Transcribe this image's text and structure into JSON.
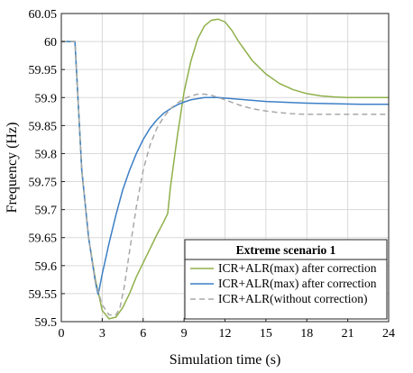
{
  "chart_data": {
    "type": "line",
    "title": "",
    "xlabel": "Simulation time (s)",
    "ylabel": "Frequency (Hz)",
    "xlim": [
      0,
      24
    ],
    "ylim": [
      59.5,
      60.05
    ],
    "xticks": [
      0,
      3,
      6,
      9,
      12,
      15,
      18,
      21,
      24
    ],
    "yticks": [
      59.5,
      59.55,
      59.6,
      59.65,
      59.7,
      59.75,
      59.8,
      59.85,
      59.9,
      59.95,
      60,
      60.05
    ],
    "xtick_labels": [
      "0",
      "3",
      "6",
      "9",
      "12",
      "15",
      "18",
      "21",
      "24"
    ],
    "ytick_labels": [
      "59.5",
      "59.55",
      "59.6",
      "59.65",
      "59.7",
      "59.75",
      "59.8",
      "59.85",
      "59.9",
      "59.95",
      "60",
      "60.05"
    ],
    "grid": true,
    "legend": {
      "title": "Extreme scenario 1",
      "placement": "bottom-right"
    },
    "series": [
      {
        "name": "ICR+ALR(max) after correction",
        "color": "#8fb04a",
        "dash": "solid",
        "x": [
          0,
          1,
          1.5,
          2,
          2.5,
          3,
          3.5,
          4,
          4.5,
          5,
          5.5,
          6,
          6.5,
          7,
          7.5,
          7.8,
          8,
          8.5,
          9,
          9.5,
          10,
          10.5,
          11,
          11.5,
          12,
          12.5,
          13,
          14,
          15,
          16,
          17,
          18,
          19,
          20,
          21,
          22,
          23,
          24
        ],
        "y": [
          60,
          60,
          59.77,
          59.65,
          59.575,
          59.52,
          59.505,
          59.508,
          59.525,
          59.55,
          59.58,
          59.605,
          59.63,
          59.655,
          59.678,
          59.693,
          59.74,
          59.83,
          59.91,
          59.965,
          60.005,
          60.028,
          60.038,
          60.04,
          60.035,
          60.02,
          60.0,
          59.966,
          59.942,
          59.925,
          59.914,
          59.907,
          59.903,
          59.901,
          59.9,
          59.9,
          59.9,
          59.9
        ]
      },
      {
        "name": "ICR+ALR(max) after correction",
        "color": "#3c7fc6",
        "dash": "solid",
        "x": [
          0,
          1,
          1.5,
          2,
          2.5,
          2.7,
          3,
          3.5,
          4,
          4.5,
          5,
          5.5,
          6,
          6.5,
          7,
          7.5,
          8,
          8.5,
          9,
          9.5,
          10,
          10.5,
          11,
          11.5,
          12,
          13,
          14,
          15,
          16,
          18,
          20,
          22,
          24
        ],
        "y": [
          60,
          60,
          59.77,
          59.65,
          59.57,
          59.548,
          59.585,
          59.64,
          59.69,
          59.735,
          59.77,
          59.8,
          59.825,
          59.845,
          59.86,
          59.872,
          59.88,
          59.887,
          59.892,
          59.896,
          59.898,
          59.9,
          59.9,
          59.9,
          59.899,
          59.897,
          59.895,
          59.893,
          59.892,
          59.89,
          59.889,
          59.888,
          59.888
        ]
      },
      {
        "name": "ICR+ALR(without correction)",
        "color": "#a8a8a8",
        "dash": "dashed",
        "x": [
          0,
          1,
          1.5,
          2,
          2.5,
          3,
          3.5,
          4,
          4.3,
          4.6,
          5,
          5.5,
          6,
          6.5,
          7,
          7.5,
          8,
          8.5,
          9,
          9.5,
          10,
          10.5,
          11,
          11.5,
          12,
          13,
          14,
          15,
          16,
          17,
          18,
          20,
          22,
          24
        ],
        "y": [
          60,
          60,
          59.77,
          59.65,
          59.57,
          59.53,
          59.512,
          59.512,
          59.525,
          59.56,
          59.625,
          59.705,
          59.77,
          59.815,
          59.845,
          59.865,
          59.88,
          59.89,
          59.898,
          59.903,
          59.906,
          59.906,
          59.904,
          59.9,
          59.896,
          59.887,
          59.88,
          59.876,
          59.873,
          59.871,
          59.87,
          59.87,
          59.87,
          59.87
        ]
      }
    ]
  }
}
